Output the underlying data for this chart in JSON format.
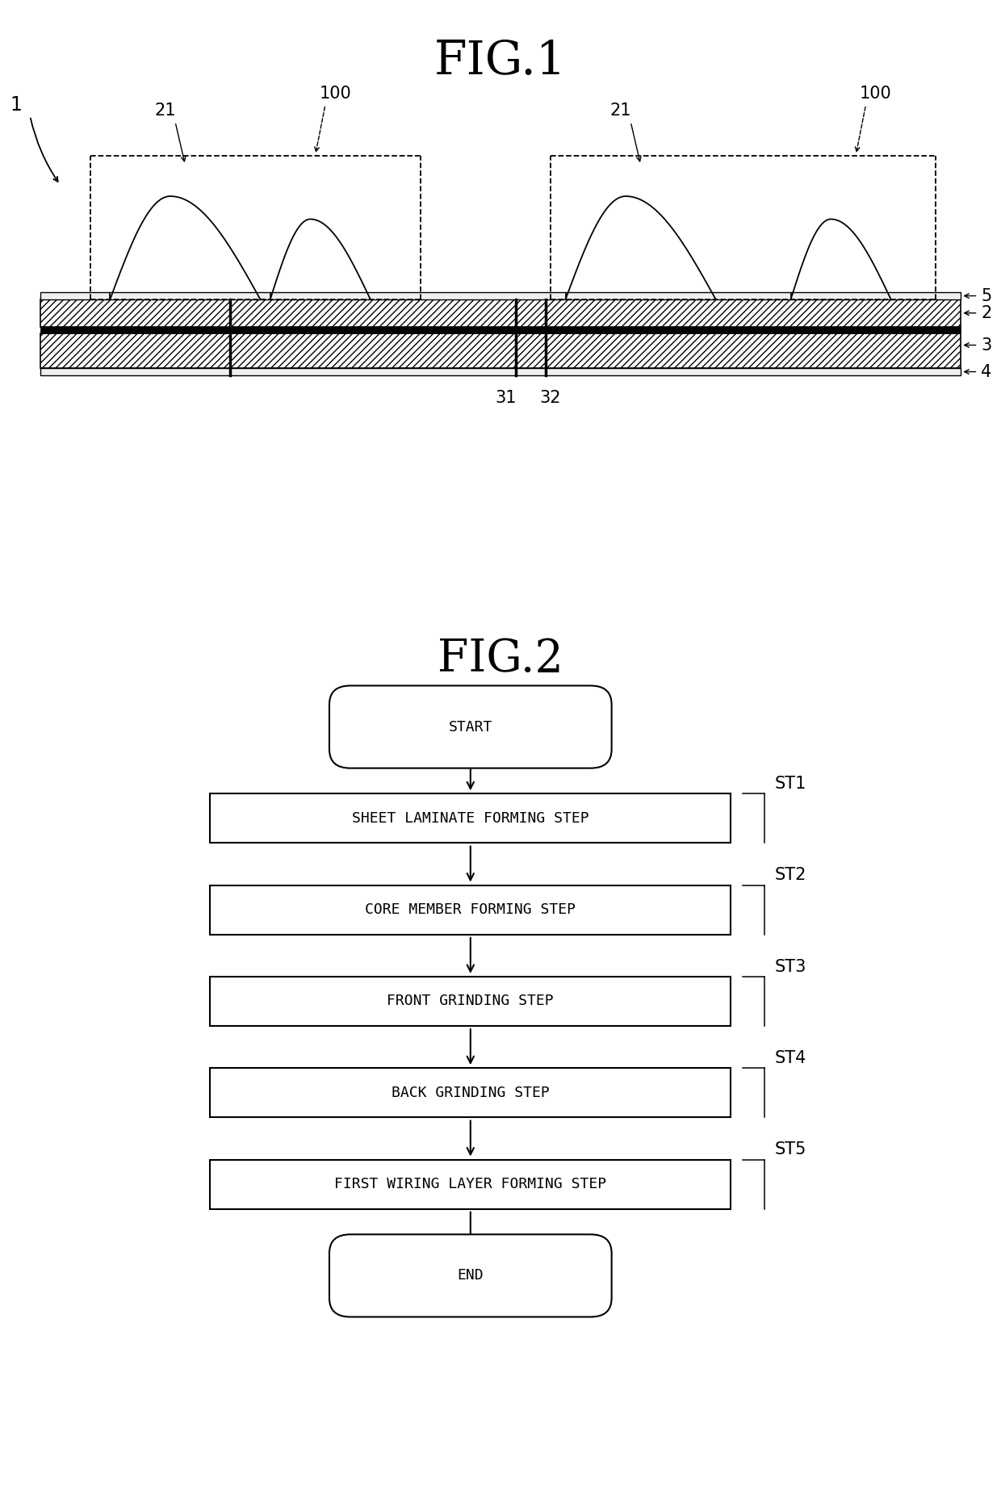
{
  "fig1_title": "FIG.1",
  "fig2_title": "FIG.2",
  "background_color": "#ffffff",
  "line_color": "#000000",
  "label_1": "1",
  "label_2": "2",
  "label_3": "3",
  "label_4": "4",
  "label_5": "5",
  "label_21": "21",
  "label_31": "31",
  "label_32": "32",
  "label_100": "100",
  "flowchart_steps": [
    {
      "label": "START",
      "type": "rounded"
    },
    {
      "label": "SHEET LAMINATE FORMING STEP",
      "type": "rect",
      "step_id": "ST1"
    },
    {
      "label": "CORE MEMBER FORMING STEP",
      "type": "rect",
      "step_id": "ST2"
    },
    {
      "label": "FRONT GRINDING STEP",
      "type": "rect",
      "step_id": "ST3"
    },
    {
      "label": "BACK GRINDING STEP",
      "type": "rect",
      "step_id": "ST4"
    },
    {
      "label": "FIRST WIRING LAYER FORMING STEP",
      "type": "rect",
      "step_id": "ST5"
    },
    {
      "label": "END",
      "type": "rounded"
    }
  ],
  "step_labels": [
    "ST1",
    "ST2",
    "ST3",
    "ST4",
    "ST5"
  ],
  "fig1_title_fontsize": 42,
  "fig2_title_fontsize": 40,
  "label_fontsize": 15,
  "flowchart_fontsize": 13,
  "step_label_fontsize": 15
}
